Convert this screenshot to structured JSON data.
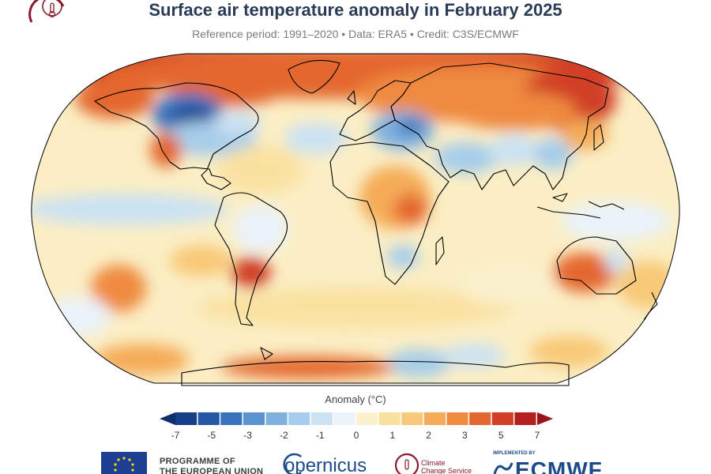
{
  "header": {
    "title": "Surface air temperature anomaly in February 2025",
    "subtitle": "Reference period: 1991–2020 • Data: ERA5 • Credit: C3S/ECMWF",
    "logo_icon": "thermometer-icon"
  },
  "colorbar": {
    "title": "Anomaly (°C)",
    "tick_labels": [
      "-7",
      "-5",
      "-3",
      "-2",
      "-1",
      "0",
      "1",
      "2",
      "3",
      "5",
      "7"
    ],
    "colors": [
      "#173f87",
      "#2457a6",
      "#3b72bd",
      "#5a93cf",
      "#7fb1df",
      "#a6cdeb",
      "#cbe2f3",
      "#eaf3fa",
      "#fbf1cf",
      "#f9e1a0",
      "#f8c978",
      "#f5ac59",
      "#ef8a3f",
      "#e4672e",
      "#d13f25",
      "#b5201f"
    ],
    "left_arrow_color": "#0f2f6b",
    "right_arrow_color": "#98131c"
  },
  "map": {
    "projection": "Robinson",
    "legend_position": "bottom"
  },
  "footer": {
    "eu_line1": "PROGRAMME OF",
    "eu_line2": "THE EUROPEAN UNION",
    "copernicus": "opernicus",
    "c3s_line1": "Climate",
    "c3s_line2": "Change Service",
    "ecmwf_small": "IMPLEMENTED BY",
    "ecmwf": "ECMWF",
    "brand_color": "#1b4b8a"
  }
}
